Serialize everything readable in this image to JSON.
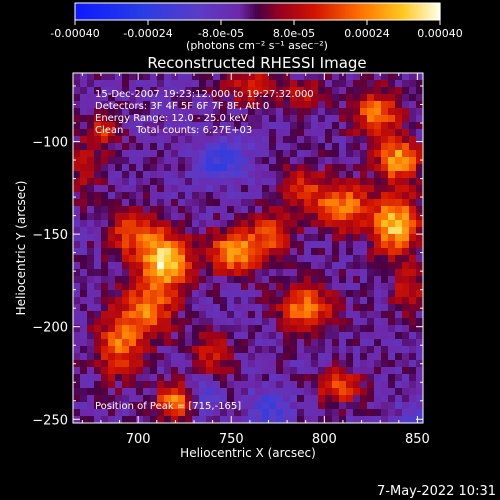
{
  "chart_data": {
    "type": "heatmap",
    "title": "Reconstructed RHESSI Image",
    "xlabel": "Heliocentric X (arcsec)",
    "ylabel": "Heliocentric Y (arcsec)",
    "xlim": [
      665,
      853
    ],
    "ylim": [
      -252,
      -63
    ],
    "xticks": [
      700,
      750,
      800,
      850
    ],
    "yticks": [
      -100,
      -150,
      -200,
      -250
    ],
    "colorbar": {
      "ticks": [
        -0.0004,
        -0.00024,
        -8e-05,
        8e-05,
        0.00024,
        0.0004
      ],
      "tick_labels": [
        "-0.00040",
        "-0.00024",
        "-8.0e-05",
        "8.0e-05",
        "0.00024",
        "0.00040"
      ],
      "range": [
        -0.0004,
        0.0004
      ],
      "label": "(photons cm⁻² s⁻¹ asec⁻²)"
    },
    "annotations": [
      "15-Dec-2007 19:23:12.000 to 19:27:32.000",
      "Detectors: 3F 4F 5F 6F 7F 8F, Att 0",
      "Energy Range: 12.0 - 25.0 keV",
      "Clean    Total counts: 6.27E+03"
    ],
    "peak_label": "Position of Peak = [715,-165]",
    "peak": [
      715,
      -165
    ],
    "sources": [
      {
        "x": 715,
        "y": -165,
        "amp": 0.00038,
        "sx": 9,
        "sy": 10
      },
      {
        "x": 698,
        "y": -150,
        "amp": 0.00022,
        "sx": 10,
        "sy": 9
      },
      {
        "x": 705,
        "y": -190,
        "amp": 0.00026,
        "sx": 10,
        "sy": 10
      },
      {
        "x": 690,
        "y": -210,
        "amp": 0.00024,
        "sx": 9,
        "sy": 12
      },
      {
        "x": 720,
        "y": -240,
        "amp": 0.00032,
        "sx": 7,
        "sy": 6
      },
      {
        "x": 740,
        "y": -215,
        "amp": 0.00016,
        "sx": 8,
        "sy": 8
      },
      {
        "x": 752,
        "y": -160,
        "amp": 0.00033,
        "sx": 10,
        "sy": 8
      },
      {
        "x": 772,
        "y": -150,
        "amp": 0.0002,
        "sx": 8,
        "sy": 8
      },
      {
        "x": 790,
        "y": -190,
        "amp": 0.00028,
        "sx": 10,
        "sy": 9
      },
      {
        "x": 808,
        "y": -232,
        "amp": 0.00025,
        "sx": 8,
        "sy": 6
      },
      {
        "x": 788,
        "y": -125,
        "amp": 0.00018,
        "sx": 9,
        "sy": 8
      },
      {
        "x": 810,
        "y": -135,
        "amp": 0.00028,
        "sx": 10,
        "sy": 9
      },
      {
        "x": 838,
        "y": -145,
        "amp": 0.00036,
        "sx": 9,
        "sy": 11
      },
      {
        "x": 840,
        "y": -110,
        "amp": 0.00032,
        "sx": 8,
        "sy": 8
      },
      {
        "x": 828,
        "y": -85,
        "amp": 0.00026,
        "sx": 9,
        "sy": 9
      },
      {
        "x": 845,
        "y": -180,
        "amp": 0.00016,
        "sx": 6,
        "sy": 8
      },
      {
        "x": 672,
        "y": -115,
        "amp": 0.00014,
        "sx": 6,
        "sy": 10
      },
      {
        "x": 680,
        "y": -95,
        "amp": 0.00018,
        "sx": 6,
        "sy": 6
      },
      {
        "x": 760,
        "y": -70,
        "amp": 0.00018,
        "sx": 10,
        "sy": 6
      },
      {
        "x": 790,
        "y": -75,
        "amp": 0.00014,
        "sx": 8,
        "sy": 6
      },
      {
        "x": 745,
        "y": -110,
        "amp": -0.00018,
        "sx": 10,
        "sy": 8
      },
      {
        "x": 770,
        "y": -245,
        "amp": -0.00016,
        "sx": 8,
        "sy": 8
      },
      {
        "x": 735,
        "y": -238,
        "amp": -0.00014,
        "sx": 6,
        "sy": 6
      },
      {
        "x": 850,
        "y": -250,
        "amp": -0.0001,
        "sx": 8,
        "sy": 8
      }
    ]
  },
  "footer": {
    "timestamp": "7-May-2022 10:31"
  }
}
